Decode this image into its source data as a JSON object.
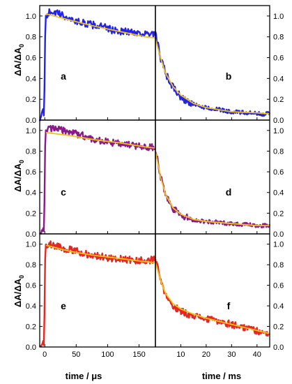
{
  "figure": {
    "ylabel_main": "ΔA/ΔA",
    "ylabel_sub": "0",
    "xlabel_left": "time / μs",
    "xlabel_right": "time / ms"
  },
  "axes": {
    "y_ticks": [
      "0.0",
      "0.2",
      "0.4",
      "0.6",
      "0.8",
      "1.0"
    ],
    "x_ticks_left": [
      "0",
      "50",
      "100",
      "150"
    ],
    "x_ticks_right": [
      "10",
      "20",
      "30",
      "40"
    ]
  },
  "colors": {
    "fit": "#f0c419",
    "frame": "#000000"
  },
  "chart_data": [
    {
      "type": "line",
      "panel": "a",
      "color": "#2323e6",
      "xlabel": "time / μs",
      "ylabel": "ΔA/ΔA0",
      "xlim": [
        -8,
        176
      ],
      "ylim": [
        0,
        1.1
      ],
      "x": [
        -6,
        -3,
        -1,
        1,
        10,
        30,
        50,
        70,
        90,
        110,
        130,
        150,
        165,
        170
      ],
      "values": [
        0.01,
        0.12,
        0.0,
        1.0,
        1.05,
        1.0,
        0.95,
        0.92,
        0.9,
        0.86,
        0.85,
        0.84,
        0.82,
        0.82
      ],
      "fit": {
        "x": [
          2,
          40,
          80,
          120,
          160,
          175
        ],
        "values": [
          1.02,
          0.96,
          0.9,
          0.85,
          0.8,
          0.79
        ]
      }
    },
    {
      "type": "line",
      "panel": "b",
      "color": "#2323e6",
      "xlabel": "time / ms",
      "ylabel": "ΔA/ΔA0",
      "xlim": [
        0,
        45
      ],
      "ylim": [
        0,
        1.1
      ],
      "x": [
        0,
        1,
        2,
        4,
        6,
        8,
        10,
        13,
        16,
        20,
        25,
        30,
        35,
        40,
        45
      ],
      "values": [
        0.82,
        0.72,
        0.6,
        0.45,
        0.35,
        0.28,
        0.22,
        0.17,
        0.14,
        0.12,
        0.1,
        0.08,
        0.07,
        0.06,
        0.06
      ],
      "fit": {
        "x": [
          0,
          2,
          4,
          7,
          10,
          15,
          20,
          30,
          40,
          45
        ],
        "values": [
          0.78,
          0.6,
          0.45,
          0.32,
          0.24,
          0.16,
          0.12,
          0.08,
          0.07,
          0.06
        ]
      }
    },
    {
      "type": "line",
      "panel": "c",
      "color": "#8a1a8a",
      "xlabel": "time / μs",
      "ylabel": "ΔA/ΔA0",
      "xlim": [
        -8,
        176
      ],
      "ylim": [
        0,
        1.1
      ],
      "x": [
        -6,
        -3,
        -1,
        1,
        10,
        30,
        50,
        70,
        90,
        110,
        130,
        150,
        165,
        170
      ],
      "values": [
        0.02,
        0.05,
        0.0,
        1.0,
        1.02,
        1.0,
        0.97,
        0.93,
        0.9,
        0.88,
        0.86,
        0.85,
        0.84,
        0.84
      ],
      "fit": {
        "x": [
          2,
          40,
          80,
          120,
          160,
          175
        ],
        "values": [
          0.98,
          0.95,
          0.91,
          0.88,
          0.84,
          0.83
        ]
      }
    },
    {
      "type": "line",
      "panel": "d",
      "color": "#8a1a8a",
      "xlabel": "time / ms",
      "ylabel": "ΔA/ΔA0",
      "xlim": [
        0,
        45
      ],
      "ylim": [
        0,
        1.1
      ],
      "x": [
        0,
        1,
        2,
        4,
        6,
        8,
        10,
        13,
        16,
        20,
        25,
        30,
        35,
        40,
        45
      ],
      "values": [
        0.82,
        0.7,
        0.55,
        0.38,
        0.27,
        0.22,
        0.18,
        0.15,
        0.13,
        0.12,
        0.11,
        0.1,
        0.09,
        0.08,
        0.08
      ],
      "fit": {
        "x": [
          0,
          2,
          4,
          7,
          10,
          15,
          20,
          30,
          40,
          45
        ],
        "values": [
          0.8,
          0.55,
          0.38,
          0.25,
          0.19,
          0.14,
          0.12,
          0.1,
          0.08,
          0.08
        ]
      }
    },
    {
      "type": "line",
      "panel": "e",
      "color": "#e8261f",
      "xlabel": "time / μs",
      "ylabel": "ΔA/ΔA0",
      "xlim": [
        -8,
        176
      ],
      "ylim": [
        0,
        1.1
      ],
      "x": [
        -6,
        -3,
        -1,
        1,
        10,
        30,
        50,
        70,
        90,
        110,
        130,
        150,
        165,
        170
      ],
      "values": [
        0.0,
        0.05,
        0.02,
        1.0,
        1.0,
        0.96,
        0.93,
        0.9,
        0.88,
        0.86,
        0.85,
        0.84,
        0.84,
        0.85
      ],
      "fit": {
        "x": [
          2,
          40,
          80,
          120,
          160,
          175
        ],
        "values": [
          0.99,
          0.93,
          0.89,
          0.86,
          0.83,
          0.82
        ]
      }
    },
    {
      "type": "line",
      "panel": "f",
      "color": "#e8261f",
      "xlabel": "time / ms",
      "ylabel": "ΔA/ΔA0",
      "xlim": [
        0,
        45
      ],
      "ylim": [
        0,
        1.1
      ],
      "x": [
        0,
        1,
        2,
        4,
        6,
        8,
        10,
        13,
        16,
        20,
        25,
        30,
        35,
        40,
        45
      ],
      "values": [
        0.85,
        0.75,
        0.65,
        0.5,
        0.42,
        0.38,
        0.35,
        0.32,
        0.3,
        0.27,
        0.25,
        0.22,
        0.19,
        0.16,
        0.12
      ],
      "fit": {
        "x": [
          0,
          2,
          4,
          7,
          10,
          15,
          20,
          30,
          40,
          45
        ],
        "values": [
          0.82,
          0.65,
          0.52,
          0.42,
          0.37,
          0.32,
          0.28,
          0.22,
          0.16,
          0.13
        ]
      }
    }
  ]
}
